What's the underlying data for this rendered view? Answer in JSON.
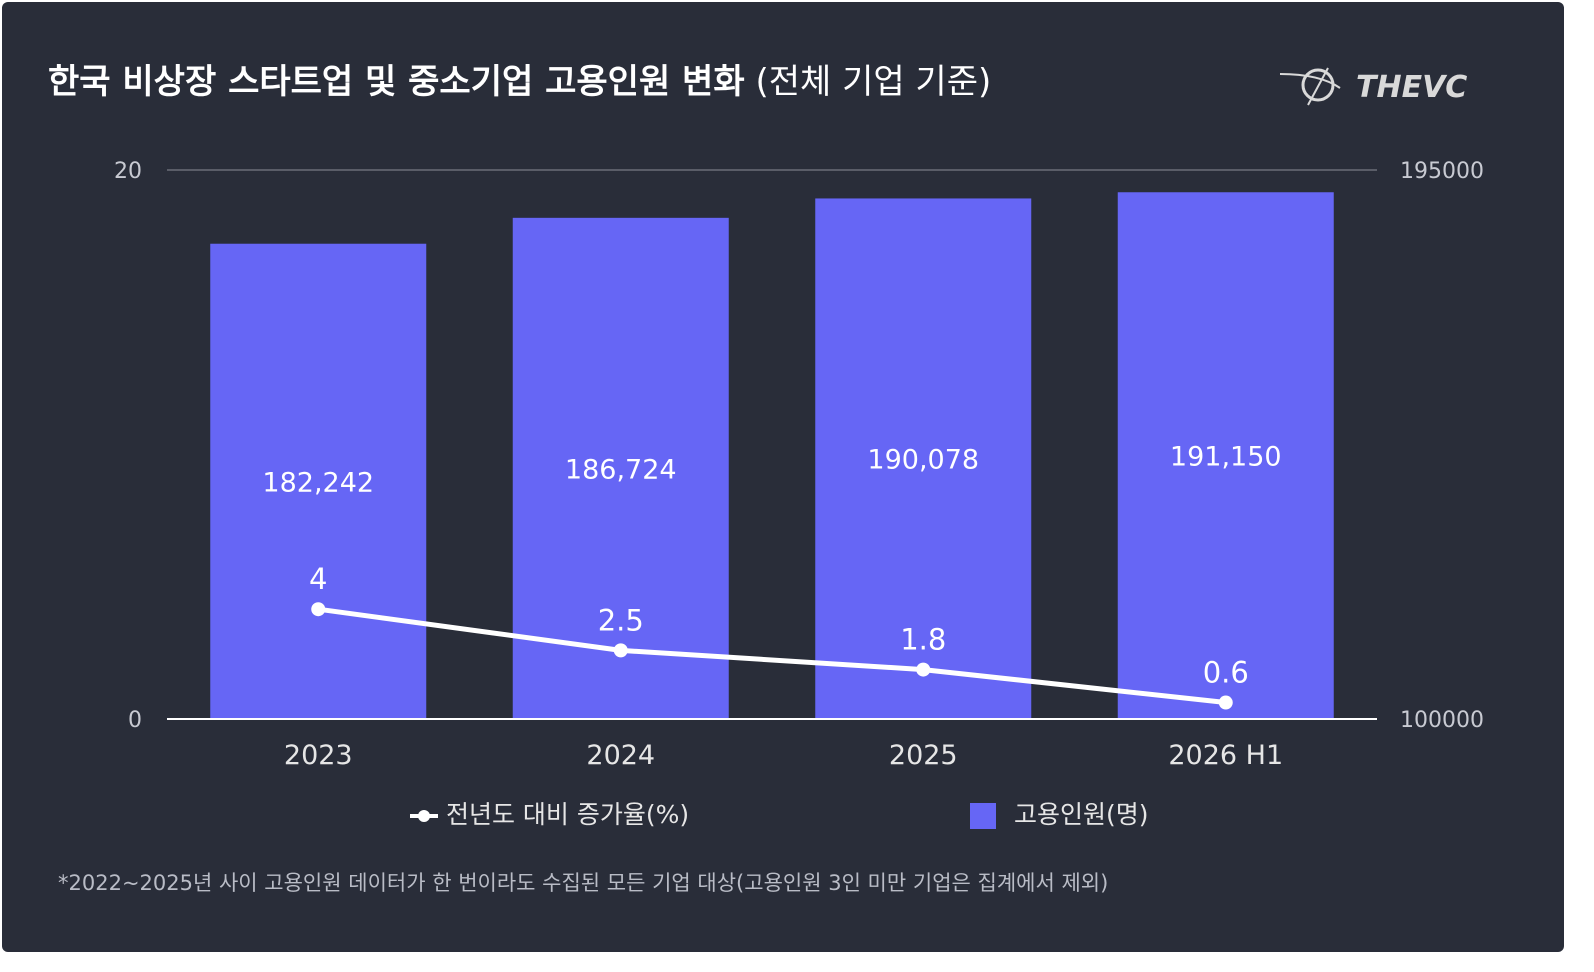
{
  "title": {
    "bold": "한국 비상장 스타트업 및 중소기업 고용인원 변화",
    "light": "(전체 기업 기준)"
  },
  "logo": {
    "text": "THEVC",
    "icon": "planet-orbit-icon"
  },
  "colors": {
    "background": "#292d39",
    "bar": "#6666f5",
    "line": "#ffffff",
    "axis_text": "#c8cad2"
  },
  "chart_data": {
    "type": "bar",
    "categories": [
      "2023",
      "2024",
      "2025",
      "2026 H1"
    ],
    "series": [
      {
        "name": "고용인원(명)",
        "type": "bar",
        "axis": "right",
        "values": [
          182242,
          186724,
          190078,
          191150
        ],
        "labels": [
          "182,242",
          "186,724",
          "190,078",
          "191,150"
        ]
      },
      {
        "name": "전년도 대비 증가율(%)",
        "type": "line",
        "axis": "left",
        "values": [
          4,
          2.5,
          1.8,
          0.6
        ],
        "labels": [
          "4",
          "2.5",
          "1.8",
          "0.6"
        ]
      }
    ],
    "y_left": {
      "range": [
        0,
        20
      ],
      "ticks": [
        "0",
        "20"
      ]
    },
    "y_right": {
      "range": [
        100000,
        195000
      ],
      "ticks": [
        "100000",
        "195000"
      ]
    },
    "grid": "top-line-only",
    "legend_position": "bottom"
  },
  "legend": {
    "line_label": "전년도 대비 증가율(%)",
    "bar_label": "고용인원(명)"
  },
  "footnote": "*2022~2025년 사이 고용인원 데이터가 한 번이라도 수집된 모든 기업 대상(고용인원 3인 미만 기업은 집계에서 제외)"
}
